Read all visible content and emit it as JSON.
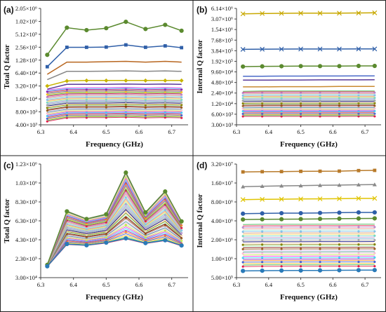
{
  "chart_data": [
    {
      "panel_label": "(a)",
      "type": "line",
      "xlabel": "Frequency (GHz)",
      "ylabel": "Total Q factor",
      "yscale": "log",
      "xlim": [
        6.3,
        6.75
      ],
      "ylim": [
        4000,
        2050000
      ],
      "x_ticks": [
        "6.3",
        "6.4",
        "6.5",
        "6.6",
        "6.7"
      ],
      "y_ticks": [
        {
          "value": 4000,
          "label": "4.00×10³"
        },
        {
          "value": 8000,
          "label": "8.00×10³"
        },
        {
          "value": 16000,
          "label": "1.60×10⁴"
        },
        {
          "value": 32000,
          "label": "3.20×10⁴"
        },
        {
          "value": 64000,
          "label": "6.40×10⁴"
        },
        {
          "value": 128000,
          "label": "1.28×10⁵"
        },
        {
          "value": 256000,
          "label": "2.56×10⁵"
        },
        {
          "value": 512000,
          "label": "5.12×10⁵"
        },
        {
          "value": 1020000,
          "label": "1.02×10⁶"
        },
        {
          "value": 2050000,
          "label": "2.05×10⁶"
        }
      ],
      "x": [
        6.32,
        6.38,
        6.44,
        6.5,
        6.56,
        6.62,
        6.68,
        6.73
      ],
      "highlight_series": [
        {
          "color": "#5b8a2f",
          "marker": "circle",
          "values": [
            170000,
            730000,
            640000,
            710000,
            1000000,
            680000,
            850000,
            620000
          ]
        },
        {
          "color": "#2f5fa8",
          "marker": "square",
          "values": [
            90000,
            255000,
            255000,
            258000,
            290000,
            255000,
            275000,
            250000
          ]
        },
        {
          "color": "#b8661f",
          "marker": "none",
          "values": [
            60000,
            115000,
            115000,
            118000,
            120000,
            115000,
            120000,
            115000
          ]
        },
        {
          "color": "#888888",
          "marker": "none",
          "values": [
            45000,
            70000,
            70000,
            71000,
            72000,
            70000,
            72000,
            70000
          ]
        },
        {
          "color": "#c8b400",
          "marker": "diamond",
          "values": [
            32000,
            42000,
            43000,
            43000,
            43000,
            43000,
            43000,
            43000
          ]
        },
        {
          "color": "#5a3a9a",
          "marker": "none",
          "values": [
            27000,
            35000,
            35000,
            35000,
            35500,
            35000,
            35500,
            35000
          ]
        }
      ],
      "band": {
        "count": 36,
        "lo_start": 4800,
        "lo_rest": 5800,
        "hi_start": 26000,
        "hi_rest": 29000,
        "bump": [
          0,
          0,
          0.01,
          0.01,
          0.03,
          0,
          0.02,
          0
        ]
      }
    },
    {
      "panel_label": "(b)",
      "type": "line",
      "xlabel": "Frequency (GHz)",
      "ylabel": "Internal Q factor",
      "yscale": "log",
      "xlim": [
        6.3,
        6.75
      ],
      "ylim": [
        3000,
        6140000
      ],
      "x_ticks": [
        "6.3",
        "6.4",
        "6.5",
        "6.6",
        "6.7"
      ],
      "y_ticks": [
        {
          "value": 3000,
          "label": "3.00×10³"
        },
        {
          "value": 6000,
          "label": "6.00×10³"
        },
        {
          "value": 12000,
          "label": "1.20×10⁴"
        },
        {
          "value": 24000,
          "label": "2.40×10⁴"
        },
        {
          "value": 48000,
          "label": "4.80×10⁴"
        },
        {
          "value": 96000,
          "label": "9.60×10⁴"
        },
        {
          "value": 192000,
          "label": "1.92×10⁵"
        },
        {
          "value": 384000,
          "label": "3.84×10⁵"
        },
        {
          "value": 768000,
          "label": "7.68×10⁵"
        },
        {
          "value": 1540000,
          "label": "1.54×10⁶"
        },
        {
          "value": 3070000,
          "label": "3.07×10⁶"
        },
        {
          "value": 6140000,
          "label": "6.14×10⁶"
        }
      ],
      "x": [
        6.32,
        6.38,
        6.44,
        6.5,
        6.56,
        6.62,
        6.68,
        6.73
      ],
      "highlight_series": [
        {
          "color": "#c8a800",
          "marker": "cross",
          "values": [
            4300000,
            4400000,
            4450000,
            4500000,
            4500000,
            4500000,
            4550000,
            4600000
          ]
        },
        {
          "color": "#2f5fa8",
          "marker": "cross",
          "values": [
            420000,
            425000,
            428000,
            430000,
            430000,
            430000,
            432000,
            432000
          ]
        },
        {
          "color": "#5b8a2f",
          "marker": "circle",
          "values": [
            136000,
            138000,
            139000,
            140000,
            140000,
            140000,
            142000,
            142000
          ]
        },
        {
          "color": "#4a6ac8",
          "marker": "none",
          "values": [
            72000,
            72500,
            73000,
            73000,
            73500,
            73500,
            74000,
            74000
          ]
        },
        {
          "color": "#5a3a9a",
          "marker": "none",
          "values": [
            56000,
            56000,
            56500,
            56500,
            57000,
            57000,
            57000,
            57500
          ]
        },
        {
          "color": "#c88a30",
          "marker": "none",
          "values": [
            36000,
            36000,
            36500,
            36500,
            36500,
            37000,
            37000,
            37000
          ]
        }
      ],
      "band": {
        "count": 30,
        "lo_start": 5200,
        "lo_rest": 5200,
        "hi_start": 27000,
        "hi_rest": 27500,
        "bump": [
          0,
          0,
          0,
          0.002,
          0.003,
          0.003,
          0.004,
          0.005
        ]
      }
    },
    {
      "panel_label": "(c)",
      "type": "line",
      "xlabel": "Frequency (GHz)",
      "ylabel": "Total Q factor",
      "yscale": "linear",
      "xlim": [
        6.3,
        6.75
      ],
      "ylim": [
        30000,
        1230000
      ],
      "x_ticks": [
        "6.3",
        "6.4",
        "6.5",
        "6.6",
        "6.7"
      ],
      "y_ticks": [
        {
          "value": 30000,
          "label": "3.00×10⁴"
        },
        {
          "value": 230000,
          "label": "2.30×10⁵"
        },
        {
          "value": 430000,
          "label": "4.30×10⁵"
        },
        {
          "value": 630000,
          "label": "6.30×10⁵"
        },
        {
          "value": 830000,
          "label": "8.30×10⁵"
        },
        {
          "value": 1030000,
          "label": "1.03×10⁶"
        },
        {
          "value": 1230000,
          "label": "1.23×10⁶"
        }
      ],
      "x": [
        6.32,
        6.38,
        6.44,
        6.5,
        6.56,
        6.62,
        6.68,
        6.73
      ],
      "band_linear": {
        "count": 40,
        "lo": [
          145000,
          380000,
          370000,
          395000,
          440000,
          390000,
          420000,
          365000
        ],
        "hi": [
          165000,
          735000,
          655000,
          700000,
          1150000,
          720000,
          950000,
          630000
        ]
      },
      "highlight_series": [
        {
          "color": "#5b8a2f",
          "marker": "circle",
          "values": [
            165000,
            730000,
            650000,
            700000,
            1140000,
            720000,
            940000,
            625000
          ]
        },
        {
          "color": "#2a7ab8",
          "marker": "circle",
          "values": [
            150000,
            385000,
            372000,
            400000,
            445000,
            395000,
            425000,
            370000
          ]
        }
      ]
    },
    {
      "panel_label": "(d)",
      "type": "line",
      "xlabel": "Frequency (GHz)",
      "ylabel": "Internal Q factor",
      "yscale": "log",
      "xlim": [
        6.3,
        6.75
      ],
      "ylim": [
        500000,
        32000000
      ],
      "x_ticks": [
        "6.3",
        "6.4",
        "6.5",
        "6.6",
        "6.7"
      ],
      "y_ticks": [
        {
          "value": 500000,
          "label": "5.00×10⁵"
        },
        {
          "value": 1000000,
          "label": "1.00×10⁶"
        },
        {
          "value": 2000000,
          "label": "2.00×10⁶"
        },
        {
          "value": 4000000,
          "label": "4.00×10⁶"
        },
        {
          "value": 8000000,
          "label": "8.00×10⁶"
        },
        {
          "value": 16000000,
          "label": "1.60×10⁷"
        },
        {
          "value": 32000000,
          "label": "3.20×10⁷"
        }
      ],
      "x": [
        6.32,
        6.38,
        6.44,
        6.5,
        6.56,
        6.62,
        6.68,
        6.73
      ],
      "highlight_series": [
        {
          "color": "#b87a2a",
          "marker": "square",
          "values": [
            24000000,
            24200000,
            24300000,
            24500000,
            24600000,
            24700000,
            25200000,
            25400000
          ]
        },
        {
          "color": "#888888",
          "marker": "triangle",
          "values": [
            14000000,
            14200000,
            14400000,
            14500000,
            14700000,
            14800000,
            15000000,
            15100000
          ]
        },
        {
          "color": "#e0c400",
          "marker": "cross",
          "values": [
            8700000,
            8800000,
            8850000,
            8900000,
            8950000,
            9000000,
            9100000,
            9100000
          ]
        },
        {
          "color": "#2f5fa8",
          "marker": "circle",
          "values": [
            5200000,
            5250000,
            5300000,
            5300000,
            5350000,
            5400000,
            5450000,
            5450000
          ]
        },
        {
          "color": "#5b8a2f",
          "marker": "circle",
          "values": [
            4200000,
            4230000,
            4250000,
            4270000,
            4300000,
            4330000,
            4360000,
            4380000
          ]
        },
        {
          "color": "#2a7ab8",
          "marker": "circle",
          "values": [
            640000,
            645000,
            648000,
            650000,
            652000,
            655000,
            658000,
            660000
          ]
        }
      ],
      "band": {
        "count": 30,
        "lo_start": 750000,
        "lo_rest": 755000,
        "hi_start": 3500000,
        "hi_rest": 3520000,
        "bump": [
          0,
          0.001,
          0.002,
          0.003,
          0.004,
          0.005,
          0.006,
          0.007
        ]
      }
    }
  ]
}
